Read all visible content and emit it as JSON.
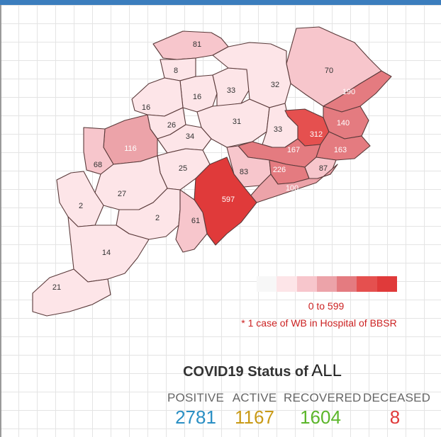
{
  "districts": [
    {
      "id": "d81",
      "label": "81",
      "value": 81
    },
    {
      "id": "d70",
      "label": "70",
      "value": 70
    },
    {
      "id": "d8",
      "label": "8",
      "value": 8
    },
    {
      "id": "d16a",
      "label": "16",
      "value": 16
    },
    {
      "id": "d33a",
      "label": "33",
      "value": 33
    },
    {
      "id": "d32",
      "label": "32",
      "value": 32
    },
    {
      "id": "d190",
      "label": "190",
      "value": 190
    },
    {
      "id": "d16b",
      "label": "16",
      "value": 16
    },
    {
      "id": "d26",
      "label": "26",
      "value": 26
    },
    {
      "id": "d31",
      "label": "31",
      "value": 31
    },
    {
      "id": "d33b",
      "label": "33",
      "value": 33
    },
    {
      "id": "d312",
      "label": "312",
      "value": 312
    },
    {
      "id": "d140",
      "label": "140",
      "value": 140
    },
    {
      "id": "d34",
      "label": "34",
      "value": 34
    },
    {
      "id": "d116",
      "label": "116",
      "value": 116
    },
    {
      "id": "d167",
      "label": "167",
      "value": 167
    },
    {
      "id": "d163",
      "label": "163",
      "value": 163
    },
    {
      "id": "d68",
      "label": "68",
      "value": 68
    },
    {
      "id": "d25",
      "label": "25",
      "value": 25
    },
    {
      "id": "d83",
      "label": "83",
      "value": 83
    },
    {
      "id": "d226",
      "label": "226",
      "value": 226
    },
    {
      "id": "d87",
      "label": "87",
      "value": 87
    },
    {
      "id": "d100",
      "label": "100",
      "value": 100
    },
    {
      "id": "d27",
      "label": "27",
      "value": 27
    },
    {
      "id": "d597",
      "label": "597",
      "value": 597
    },
    {
      "id": "d2a",
      "label": "2",
      "value": 2
    },
    {
      "id": "d2b",
      "label": "2",
      "value": 2
    },
    {
      "id": "d61",
      "label": "61",
      "value": 61
    },
    {
      "id": "d14",
      "label": "14",
      "value": 14
    },
    {
      "id": "d21",
      "label": "21",
      "value": 21
    }
  ],
  "colors": {
    "scale": [
      "#f7f7f7",
      "#fde5e8",
      "#f7c6cc",
      "#eca3a9",
      "#e47b80",
      "#e5504f",
      "#e03a3a"
    ],
    "highlight_text": "#ffffff",
    "normal_text": "#333333"
  },
  "legend": {
    "range": "0 to 599",
    "note": "* 1 case of WB in Hospital of BBSR"
  },
  "status": {
    "title": "COVID19 Status of",
    "state": "ALL",
    "positive_label": "POSITIVE",
    "positive_value": "2781",
    "positive_color": "#2a8fc4",
    "active_label": "ACTIVE",
    "active_value": "1167",
    "active_color": "#c99a17",
    "recovered_label": "RECOVERED",
    "recovered_value": "1604",
    "recovered_color": "#5bb62a",
    "deceased_label": "DECEASED",
    "deceased_value": "8",
    "deceased_color": "#e03a3a"
  }
}
